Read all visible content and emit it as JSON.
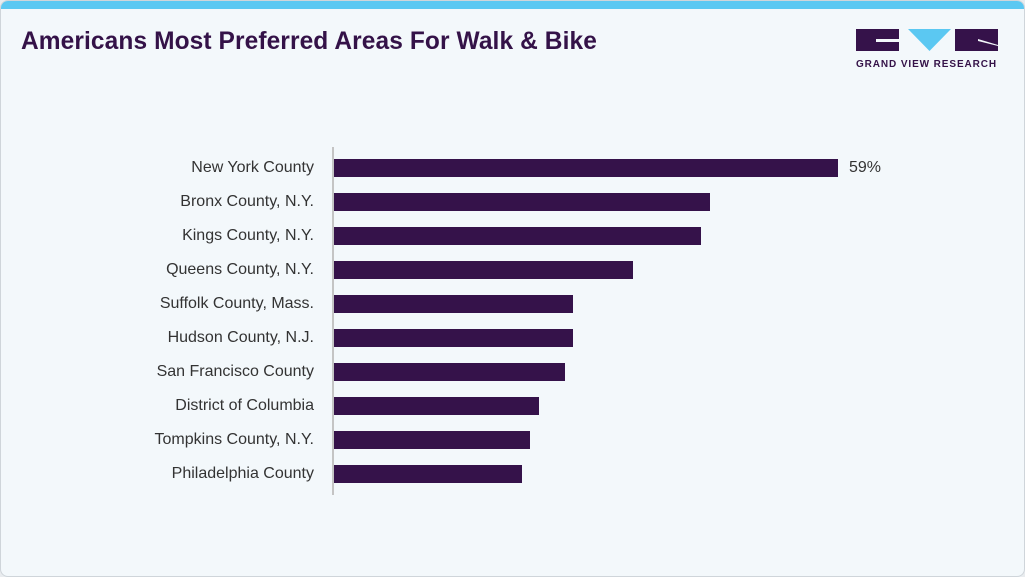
{
  "header": {
    "title": "Americans Most Preferred Areas For Walk & Bike",
    "accent_color": "#5bc8f2"
  },
  "logo": {
    "text": "GRAND VIEW RESEARCH",
    "icon": "gvr-logo-icon",
    "colors": {
      "dark": "#35124a",
      "light": "#5bc8f2"
    }
  },
  "chart_data": {
    "type": "bar",
    "orientation": "horizontal",
    "title": "Americans Most Preferred Areas For Walk & Bike",
    "xlabel": "",
    "ylabel": "",
    "categories": [
      "New York County",
      "Bronx County, N.Y.",
      "Kings County, N.Y.",
      "Queens County, N.Y.",
      "Suffolk County, Mass.",
      "Hudson County, N.J.",
      "San Francisco County",
      "District of Columbia",
      "Tompkins County, N.Y.",
      "Philadelphia County"
    ],
    "values": [
      59,
      44,
      43,
      35,
      28,
      28,
      27,
      24,
      23,
      22
    ],
    "unit": "%",
    "data_labels": [
      "59%",
      "",
      "",
      "",
      "",
      "",
      "",
      "",
      "",
      ""
    ],
    "bar_color": "#35124a",
    "xlim": [
      0,
      59
    ],
    "grid": false,
    "legend": null
  }
}
